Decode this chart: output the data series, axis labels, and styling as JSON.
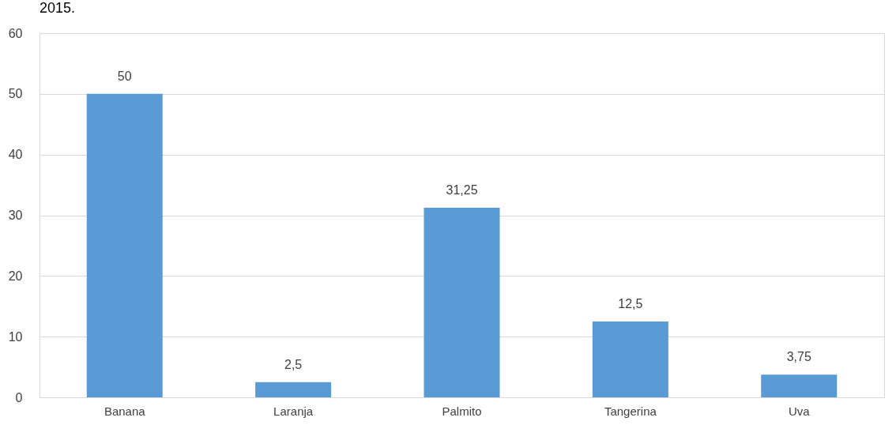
{
  "chart_data": {
    "type": "bar",
    "title": "2015.",
    "categories": [
      "Banana",
      "Laranja",
      "Palmito",
      "Tangerina",
      "Uva"
    ],
    "values": [
      50,
      2.5,
      31.25,
      12.5,
      3.75
    ],
    "value_labels": [
      "50",
      "2,5",
      "31,25",
      "12,5",
      "3,75"
    ],
    "color": "#5b9bd5",
    "ylim": [
      0,
      60
    ],
    "yticks": [
      0,
      10,
      20,
      30,
      40,
      50,
      60
    ],
    "grid": "y"
  }
}
